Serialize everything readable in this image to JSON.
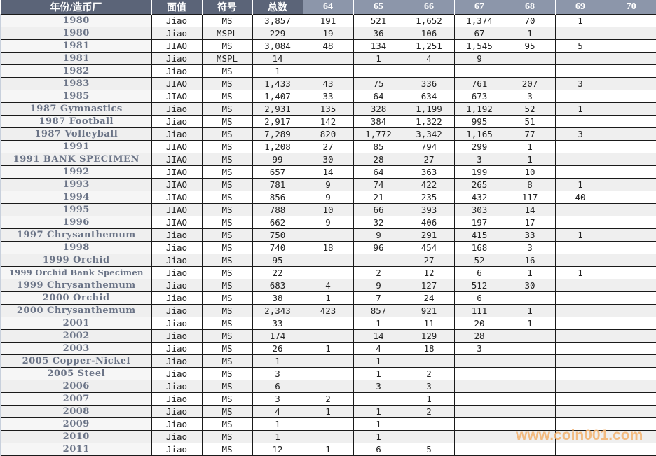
{
  "headers": [
    "年份/造币厂",
    "面值",
    "符号",
    "总数",
    "64",
    "65",
    "66",
    "67",
    "68",
    "69",
    "70"
  ],
  "rows": [
    [
      "1980",
      "Jiao",
      "MS",
      "3,857",
      "191",
      "521",
      "1,652",
      "1,374",
      "70",
      "1",
      ""
    ],
    [
      "1980",
      "Jiao",
      "MSPL",
      "229",
      "19",
      "36",
      "106",
      "67",
      "1",
      "",
      ""
    ],
    [
      "1981",
      "JIAO",
      "MS",
      "3,084",
      "48",
      "134",
      "1,251",
      "1,545",
      "95",
      "5",
      ""
    ],
    [
      "1981",
      "Jiao",
      "MSPL",
      "14",
      "",
      "1",
      "4",
      "9",
      "",
      "",
      ""
    ],
    [
      "1982",
      "Jiao",
      "MS",
      "1",
      "",
      "",
      "",
      "",
      "",
      "",
      ""
    ],
    [
      "1983",
      "JIAO",
      "MS",
      "1,433",
      "43",
      "75",
      "336",
      "761",
      "207",
      "3",
      ""
    ],
    [
      "1985",
      "JIAO",
      "MS",
      "1,407",
      "33",
      "64",
      "634",
      "673",
      "3",
      "",
      ""
    ],
    [
      "1987 Gymnastics",
      "Jiao",
      "MS",
      "2,931",
      "135",
      "328",
      "1,199",
      "1,192",
      "52",
      "1",
      ""
    ],
    [
      "1987 Football",
      "Jiao",
      "MS",
      "2,917",
      "142",
      "384",
      "1,322",
      "995",
      "51",
      "",
      ""
    ],
    [
      "1987 Volleyball",
      "Jiao",
      "MS",
      "7,289",
      "820",
      "1,772",
      "3,342",
      "1,165",
      "77",
      "3",
      ""
    ],
    [
      "1991",
      "JIAO",
      "MS",
      "1,208",
      "27",
      "85",
      "794",
      "299",
      "1",
      "",
      ""
    ],
    [
      "1991 BANK SPECIMEN",
      "JIAO",
      "MS",
      "99",
      "30",
      "28",
      "27",
      "3",
      "1",
      "",
      ""
    ],
    [
      "1992",
      "JIAO",
      "MS",
      "657",
      "14",
      "64",
      "363",
      "199",
      "10",
      "",
      ""
    ],
    [
      "1993",
      "JIAO",
      "MS",
      "781",
      "9",
      "74",
      "422",
      "265",
      "8",
      "1",
      ""
    ],
    [
      "1994",
      "JIAO",
      "MS",
      "856",
      "9",
      "21",
      "235",
      "432",
      "117",
      "40",
      ""
    ],
    [
      "1995",
      "JIAO",
      "MS",
      "788",
      "10",
      "66",
      "393",
      "303",
      "14",
      "",
      ""
    ],
    [
      "1996",
      "JIAO",
      "MS",
      "662",
      "9",
      "32",
      "406",
      "197",
      "17",
      "",
      ""
    ],
    [
      "1997 Chrysanthemum",
      "Jiao",
      "MS",
      "750",
      "",
      "9",
      "291",
      "415",
      "33",
      "1",
      ""
    ],
    [
      "1998",
      "Jiao",
      "MS",
      "740",
      "18",
      "96",
      "454",
      "168",
      "3",
      "",
      ""
    ],
    [
      "1999 Orchid",
      "Jiao",
      "MS",
      "95",
      "",
      "",
      "27",
      "52",
      "16",
      "",
      ""
    ],
    [
      "1999 Orchid Bank Specimen",
      "Jiao",
      "MS",
      "22",
      "",
      "2",
      "12",
      "6",
      "1",
      "1",
      ""
    ],
    [
      "1999 Chrysanthemum",
      "Jiao",
      "MS",
      "683",
      "4",
      "9",
      "127",
      "512",
      "30",
      "",
      ""
    ],
    [
      "2000 Orchid",
      "Jiao",
      "MS",
      "38",
      "1",
      "7",
      "24",
      "6",
      "",
      "",
      ""
    ],
    [
      "2000 Chrysanthemum",
      "Jiao",
      "MS",
      "2,343",
      "423",
      "857",
      "921",
      "111",
      "1",
      "",
      ""
    ],
    [
      "2001",
      "Jiao",
      "MS",
      "33",
      "",
      "1",
      "11",
      "20",
      "1",
      "",
      ""
    ],
    [
      "2002",
      "Jiao",
      "MS",
      "174",
      "",
      "14",
      "129",
      "28",
      "",
      "",
      ""
    ],
    [
      "2003",
      "Jiao",
      "MS",
      "26",
      "1",
      "4",
      "18",
      "3",
      "",
      "",
      ""
    ],
    [
      "2005 Copper-Nickel",
      "Jiao",
      "MS",
      "1",
      "",
      "1",
      "",
      "",
      "",
      "",
      ""
    ],
    [
      "2005 Steel",
      "Jiao",
      "MS",
      "3",
      "",
      "1",
      "2",
      "",
      "",
      "",
      ""
    ],
    [
      "2006",
      "Jiao",
      "MS",
      "6",
      "",
      "3",
      "3",
      "",
      "",
      "",
      ""
    ],
    [
      "2007",
      "Jiao",
      "MS",
      "3",
      "2",
      "",
      "1",
      "",
      "",
      "",
      ""
    ],
    [
      "2008",
      "Jiao",
      "MS",
      "4",
      "1",
      "1",
      "2",
      "",
      "",
      "",
      ""
    ],
    [
      "2009",
      "Jiao",
      "MS",
      "1",
      "",
      "1",
      "",
      "",
      "",
      "",
      ""
    ],
    [
      "2010",
      "Jiao",
      "MS",
      "1",
      "",
      "1",
      "",
      "",
      "",
      "",
      ""
    ],
    [
      "2011",
      "Jiao",
      "MS",
      "12",
      "1",
      "6",
      "5",
      "",
      "",
      "",
      ""
    ]
  ],
  "watermark": "www.coin001.com",
  "colors": {
    "header_dark": "#5b6478",
    "header_light": "#8c96aa",
    "row_alt": "#efefef",
    "name_text": "#6a7386",
    "watermark": "#f4b676"
  }
}
